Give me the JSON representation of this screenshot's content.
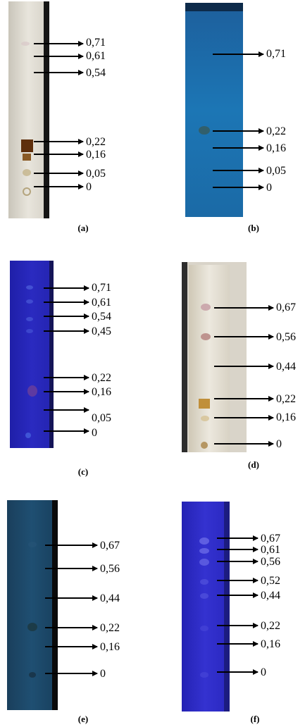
{
  "figure": {
    "panels": [
      {
        "id": "a",
        "caption": "(a)",
        "description_colors": {
          "plate": "#e3e0d7",
          "edge": "#1a1a1a",
          "spot_dark": "#6b3a12"
        },
        "labels": [
          "0,71",
          "0,61",
          "0,54",
          "0,22",
          "0,16",
          "0,05",
          "0"
        ]
      },
      {
        "id": "b",
        "caption": "(b)",
        "description_colors": {
          "plate": "#1a6aa8",
          "edge": "#0e2c52"
        },
        "labels": [
          "0,71",
          "0,22",
          "0,16",
          "0,05",
          "0"
        ]
      },
      {
        "id": "c",
        "caption": "(c)",
        "description_colors": {
          "plate": "#2626b4",
          "edge": "#161660"
        },
        "labels": [
          "0,71",
          "0,61",
          "0,54",
          "0,45",
          "0,22",
          "0,16",
          "0,05",
          "0"
        ]
      },
      {
        "id": "d",
        "caption": "(d)",
        "description_colors": {
          "plate": "#e9e4d8",
          "edge": "#2a2a2a",
          "spot": "#b48a52"
        },
        "labels": [
          "0,67",
          "0,56",
          "0,44",
          "0,22",
          "0,16",
          "0"
        ]
      },
      {
        "id": "e",
        "caption": "(e)",
        "description_colors": {
          "plate": "#1c4a6a",
          "edge": "#0a0a0a"
        },
        "labels": [
          "0,67",
          "0,56",
          "0,44",
          "0,22",
          "0,16",
          "0"
        ]
      },
      {
        "id": "f",
        "caption": "(f)",
        "description_colors": {
          "plate": "#2d2ac8",
          "edge": "#1a1a7a"
        },
        "labels": [
          "0,67",
          "0,61",
          "0,56",
          "0,52",
          "0,44",
          "0,22",
          "0,16",
          "0"
        ]
      }
    ]
  }
}
